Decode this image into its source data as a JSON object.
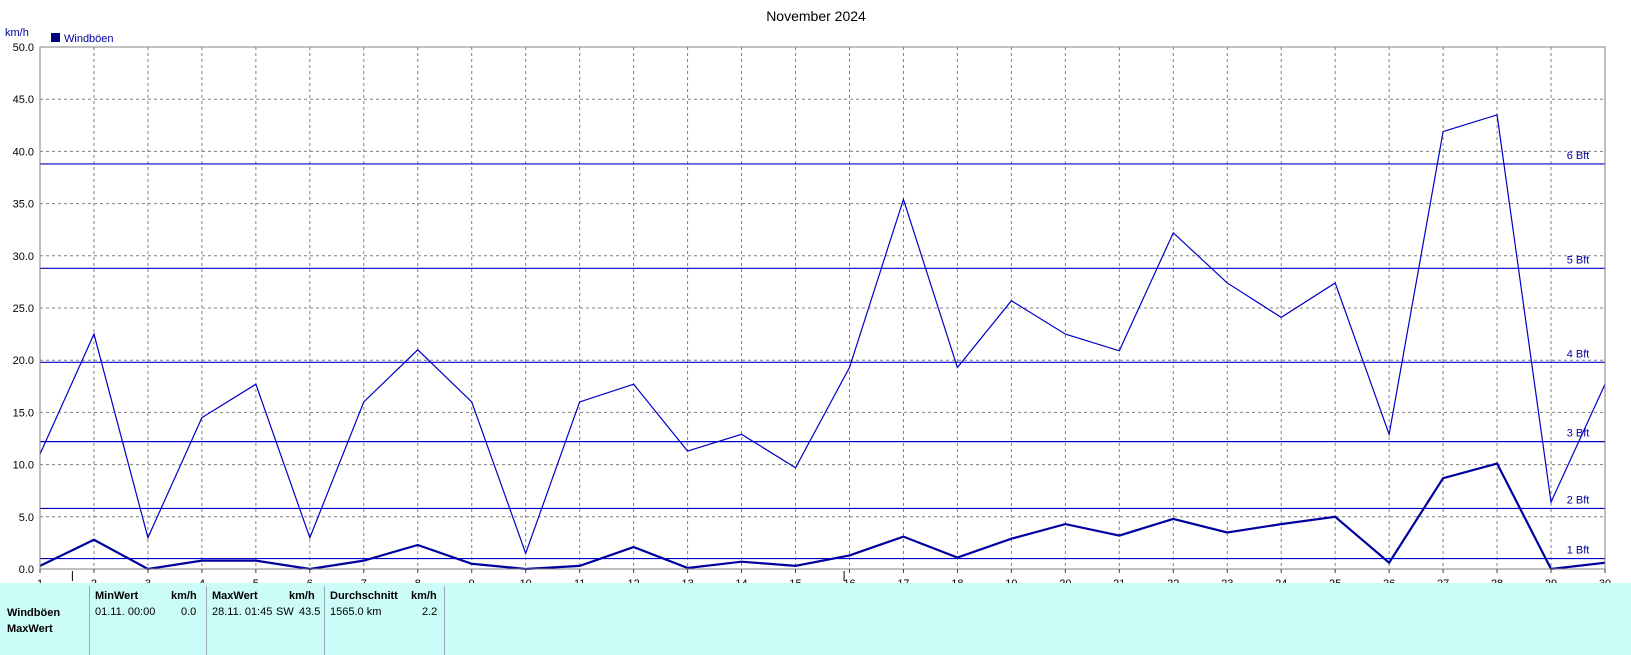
{
  "chart_data": {
    "type": "line",
    "title": "November 2024",
    "ylabel": "km/h",
    "legend": "Windböen",
    "legend_position": "top-left",
    "x": [
      1,
      2,
      3,
      4,
      5,
      6,
      7,
      8,
      9,
      10,
      11,
      12,
      13,
      14,
      15,
      16,
      17,
      18,
      19,
      20,
      21,
      22,
      23,
      24,
      25,
      26,
      27,
      28,
      29,
      30
    ],
    "xlim": [
      1,
      30
    ],
    "ylim": [
      0,
      50
    ],
    "y_ticks": [
      "0.0",
      "5.0",
      "10.0",
      "15.0",
      "20.0",
      "25.0",
      "30.0",
      "35.0",
      "40.0",
      "45.0",
      "50.0"
    ],
    "grid": true,
    "series": [
      {
        "name": "Windböen",
        "values": [
          11.0,
          22.5,
          3.0,
          14.5,
          17.7,
          3.0,
          16.0,
          21.0,
          16.0,
          1.5,
          16.0,
          17.7,
          11.3,
          12.9,
          9.7,
          19.3,
          35.4,
          19.3,
          25.7,
          22.5,
          20.9,
          32.2,
          27.4,
          24.1,
          27.4,
          12.9,
          41.9,
          43.5,
          6.4,
          17.7
        ],
        "stroke": "#0000c8"
      },
      {
        "values": [
          0.3,
          2.8,
          0.0,
          0.8,
          0.8,
          0.0,
          0.8,
          2.3,
          0.5,
          0.0,
          0.3,
          2.1,
          0.1,
          0.7,
          0.3,
          1.3,
          3.1,
          1.1,
          2.9,
          4.3,
          3.2,
          4.8,
          3.5,
          4.3,
          5.0,
          0.6,
          8.7,
          10.1,
          0.0,
          0.6
        ],
        "stroke": "#0000a0"
      }
    ],
    "beaufort_lines": [
      {
        "label": "1 Bft",
        "value": 1.0
      },
      {
        "label": "2 Bft",
        "value": 5.8
      },
      {
        "label": "3 Bft",
        "value": 12.2
      },
      {
        "label": "4 Bft",
        "value": 19.8
      },
      {
        "label": "5 Bft",
        "value": 28.8
      },
      {
        "label": "6 Bft",
        "value": 38.8
      }
    ],
    "moon_markers": [
      {
        "day": 1.6,
        "symbol": "●"
      },
      {
        "day": 15.9,
        "symbol": "O"
      }
    ],
    "line_color": "#0000c8",
    "legend_color": "#000080"
  },
  "stats": {
    "row_label": "Windböen",
    "row_label2": "MaxWert",
    "min": {
      "header": "MinWert",
      "unit": "km/h",
      "date": "01.11.  00:00",
      "value": "0.0"
    },
    "max": {
      "header": "MaxWert",
      "unit": "km/h",
      "date": "28.11.  01:45",
      "dir": "SW",
      "value": "43.5"
    },
    "avg": {
      "header": "Durchschnitt",
      "unit": "km/h",
      "dist": "1565.0 km",
      "value": "2.2"
    }
  }
}
